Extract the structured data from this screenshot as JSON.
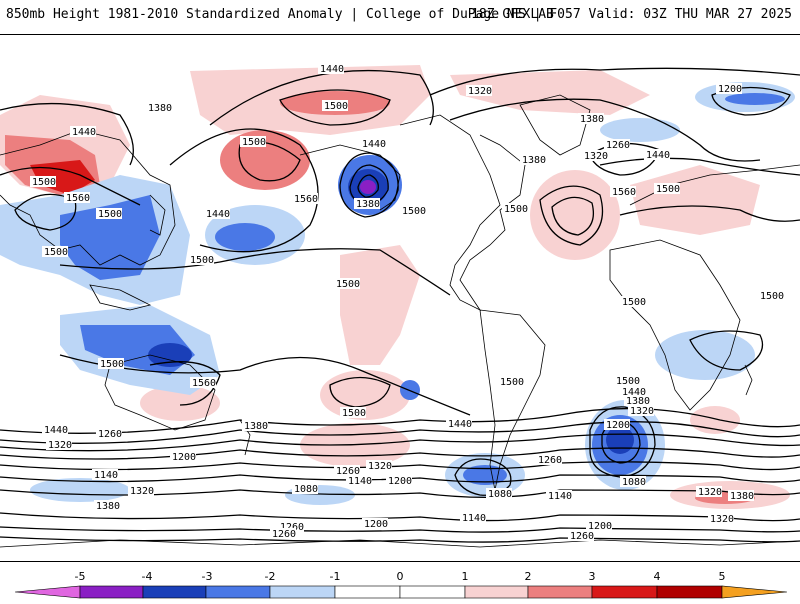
{
  "header": {
    "title": "850mb Height 1981-2010 Standardized Anomaly | College of DuPage NEXLAB",
    "run_info": "18Z GFS | F057 Valid: 03Z THU MAR 27 2025"
  },
  "colors": {
    "neg5": "#e066e0",
    "neg4": "#8a1fc4",
    "neg3": "#1a3fb8",
    "neg2": "#4a78e6",
    "neg1": "#bcd6f6",
    "zero": "#ffffff",
    "pos1": "#f8d2d2",
    "pos2": "#ec7f7f",
    "pos3": "#d81818",
    "pos4": "#b00000",
    "pos5": "#f4a020"
  },
  "colorbar": {
    "ticks": [
      "-5",
      "-4",
      "-3",
      "-2",
      "-1",
      "0",
      "1",
      "2",
      "3",
      "4",
      "5"
    ]
  },
  "contour_labels": [
    "1440",
    "1380",
    "1500",
    "1320",
    "1200",
    "1440",
    "1500",
    "1380",
    "1500",
    "1560",
    "1440",
    "1380",
    "1500",
    "1440",
    "1560",
    "1500",
    "1380",
    "1320",
    "1260",
    "1440",
    "1500",
    "1560",
    "1500",
    "1500",
    "1500",
    "1500",
    "1440",
    "1320",
    "1260",
    "1200",
    "1140",
    "1080",
    "1260",
    "1320",
    "1380",
    "1200",
    "1140",
    "1080",
    "1260",
    "1320",
    "1380",
    "1140",
    "1200",
    "1260",
    "1500",
    "1440",
    "1380",
    "1320",
    "1200",
    "1080",
    "1500",
    "1560",
    "1500",
    "1500",
    "1500",
    "1440",
    "1380",
    "1320",
    "1260",
    "1200",
    "1140",
    "1260",
    "1320",
    "1380",
    "1500"
  ]
}
